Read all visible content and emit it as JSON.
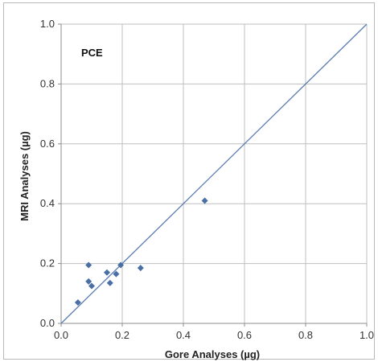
{
  "chart_data": {
    "type": "scatter",
    "title": "",
    "annotation": "PCE",
    "xlabel": "Gore Analyses (µg)",
    "ylabel": "MRI Analyses (µg)",
    "xlim": [
      0.0,
      1.0
    ],
    "ylim": [
      0.0,
      1.0
    ],
    "xticks": [
      "0.0",
      "0.2",
      "0.4",
      "0.6",
      "0.8",
      "1.0"
    ],
    "yticks": [
      "0.0",
      "0.2",
      "0.4",
      "0.6",
      "0.8",
      "1.0"
    ],
    "grid": true,
    "reference_line": {
      "from": [
        0.0,
        0.0
      ],
      "to": [
        1.0,
        1.0
      ]
    },
    "series": [
      {
        "points": [
          {
            "x": 0.055,
            "y": 0.07
          },
          {
            "x": 0.09,
            "y": 0.195
          },
          {
            "x": 0.09,
            "y": 0.14
          },
          {
            "x": 0.1,
            "y": 0.125
          },
          {
            "x": 0.15,
            "y": 0.17
          },
          {
            "x": 0.16,
            "y": 0.135
          },
          {
            "x": 0.18,
            "y": 0.165
          },
          {
            "x": 0.195,
            "y": 0.195
          },
          {
            "x": 0.26,
            "y": 0.185
          },
          {
            "x": 0.47,
            "y": 0.41
          }
        ]
      }
    ],
    "colors": {
      "marker": "#4a6fa5",
      "line": "#5b7db3",
      "grid": "#bfbfbf",
      "axis": "#8c8c8c"
    }
  }
}
